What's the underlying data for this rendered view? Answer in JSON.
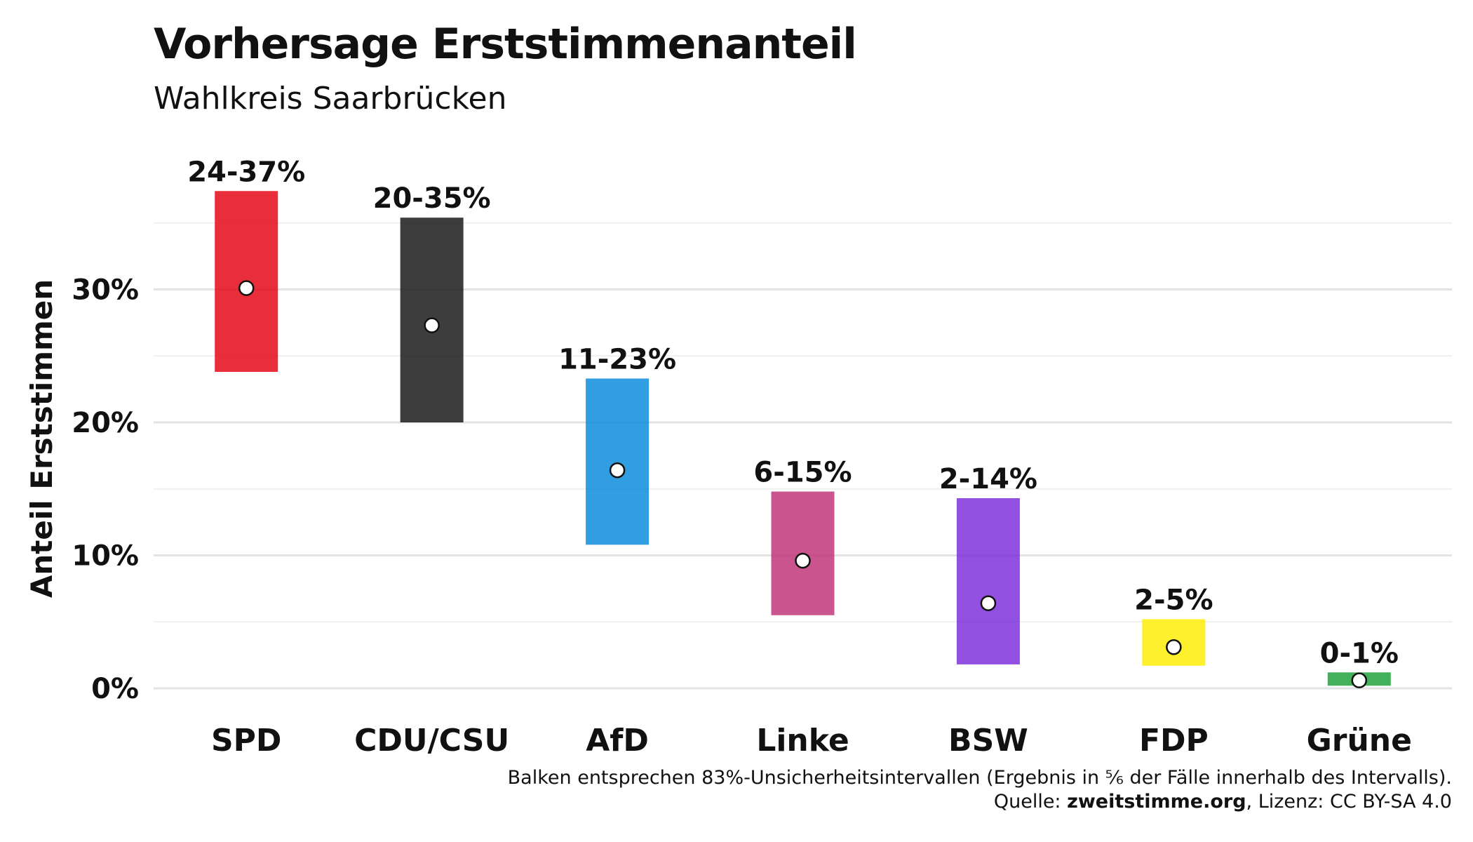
{
  "title": "Vorhersage Erststimmenanteil",
  "subtitle": "Wahlkreis Saarbrücken",
  "caption": {
    "line1": "Balken entsprechen 83%-Unsicherheitsintervallen (Ergebnis in ⅚ der Fälle innerhalb des Intervalls).",
    "source_prefix": "Quelle: ",
    "source_name": "zweitstimme.org",
    "license": ", Lizenz: CC BY-SA 4.0"
  },
  "chart_data": {
    "type": "range-bar",
    "ylabel": "Anteil Erststimmen",
    "xlabel": "",
    "ylim": [
      0,
      37
    ],
    "yticks": [
      0,
      10,
      20,
      30
    ],
    "ytick_labels": [
      "0%",
      "10%",
      "20%",
      "30%"
    ],
    "grid": true,
    "categories": [
      "SPD",
      "CDU/CSU",
      "AfD",
      "Linke",
      "BSW",
      "FDP",
      "Grüne"
    ],
    "lower": [
      23.8,
      20.0,
      10.8,
      5.5,
      1.8,
      1.7,
      0.2
    ],
    "upper": [
      37.4,
      35.4,
      23.3,
      14.8,
      14.3,
      5.2,
      1.2
    ],
    "point": [
      30.1,
      27.3,
      16.4,
      9.6,
      6.4,
      3.1,
      0.6
    ],
    "range_labels": [
      "24-37%",
      "20-35%",
      "11-23%",
      "6-15%",
      "2-14%",
      "2-5%",
      "0-1%"
    ],
    "colors": [
      "#E3000F",
      "#121212",
      "#0489DB",
      "#BE3075",
      "#792AD9",
      "#FFED00",
      "#1AA037"
    ]
  }
}
